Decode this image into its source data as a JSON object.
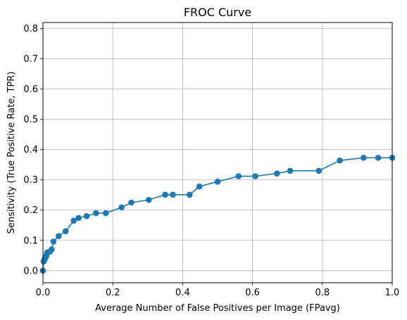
{
  "chart_data": {
    "type": "line",
    "title": "FROC Curve",
    "xlabel": "Average Number of False Positives per Image (FPavg)",
    "ylabel": "Sensitivity (True Positive Rate, TPR)",
    "xlim": [
      0,
      1.0
    ],
    "ylim": [
      -0.04,
      0.82
    ],
    "xticks": [
      "0.0",
      "0.2",
      "0.4",
      "0.6",
      "0.8",
      "1.0"
    ],
    "yticks": [
      "0.0",
      "0.1",
      "0.2",
      "0.3",
      "0.4",
      "0.5",
      "0.6",
      "0.7",
      "0.8"
    ],
    "grid": true,
    "markers": true,
    "color": "#1f77b4",
    "series": [
      {
        "x": [
          0.0,
          0.002,
          0.004,
          0.006,
          0.008,
          0.01,
          0.012,
          0.02,
          0.025,
          0.03,
          0.045,
          0.065,
          0.088,
          0.102,
          0.125,
          0.152,
          0.18,
          0.225,
          0.253,
          0.303,
          0.35,
          0.372,
          0.42,
          0.448,
          0.5,
          0.56,
          0.608,
          0.67,
          0.708,
          0.79,
          0.85,
          0.918,
          0.96,
          1.0
        ],
        "y": [
          0.0,
          0.03,
          0.035,
          0.04,
          0.045,
          0.05,
          0.06,
          0.063,
          0.07,
          0.096,
          0.114,
          0.13,
          0.165,
          0.174,
          0.18,
          0.19,
          0.19,
          0.209,
          0.225,
          0.234,
          0.251,
          0.251,
          0.251,
          0.278,
          0.294,
          0.312,
          0.312,
          0.321,
          0.33,
          0.33,
          0.364,
          0.373,
          0.373,
          0.373
        ]
      }
    ]
  }
}
